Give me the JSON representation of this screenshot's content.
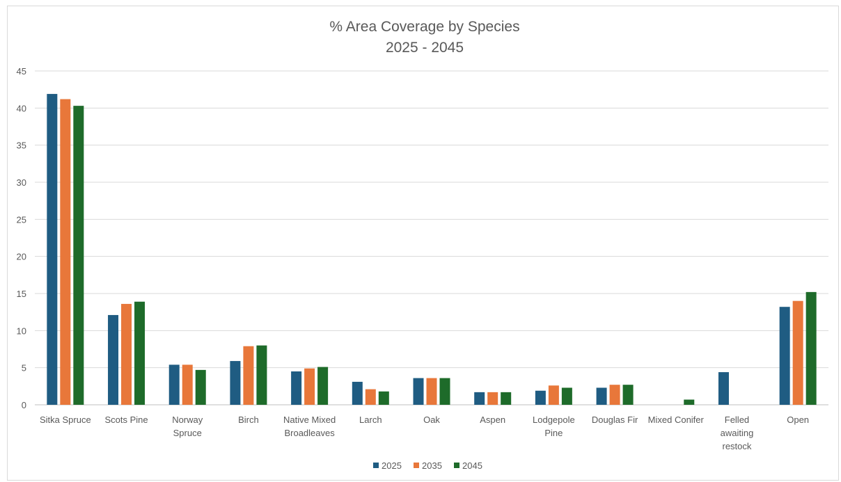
{
  "chart_data": {
    "type": "bar",
    "title": "% Area Coverage by Species",
    "subtitle": "2025 - 2045",
    "xlabel": "",
    "ylabel": "",
    "ylim": [
      0,
      45
    ],
    "yticks": [
      0,
      5,
      10,
      15,
      20,
      25,
      30,
      35,
      40,
      45
    ],
    "grid": true,
    "legend_position": "bottom",
    "categories": [
      [
        "Sitka Spruce"
      ],
      [
        "Scots Pine"
      ],
      [
        "Norway",
        "Spruce"
      ],
      [
        "Birch"
      ],
      [
        "Native Mixed",
        "Broadleaves"
      ],
      [
        "Larch"
      ],
      [
        "Oak"
      ],
      [
        "Aspen"
      ],
      [
        "Lodgepole",
        "Pine"
      ],
      [
        "Douglas Fir"
      ],
      [
        "Mixed Conifer"
      ],
      [
        "Felled",
        "awaiting",
        "restock"
      ],
      [
        "Open"
      ]
    ],
    "series": [
      {
        "name": "2025",
        "color": "#1f5c82",
        "values": [
          41.9,
          12.1,
          5.4,
          5.9,
          4.5,
          3.1,
          3.6,
          1.7,
          1.9,
          2.3,
          0,
          4.4,
          13.2
        ]
      },
      {
        "name": "2035",
        "color": "#e8773a",
        "values": [
          41.2,
          13.6,
          5.4,
          7.9,
          4.9,
          2.1,
          3.6,
          1.7,
          2.6,
          2.7,
          0,
          0,
          14.0
        ]
      },
      {
        "name": "2045",
        "color": "#1e6b2a",
        "values": [
          40.3,
          13.9,
          4.7,
          8.0,
          5.1,
          1.8,
          3.6,
          1.7,
          2.3,
          2.7,
          0.7,
          0,
          15.2
        ]
      }
    ]
  }
}
